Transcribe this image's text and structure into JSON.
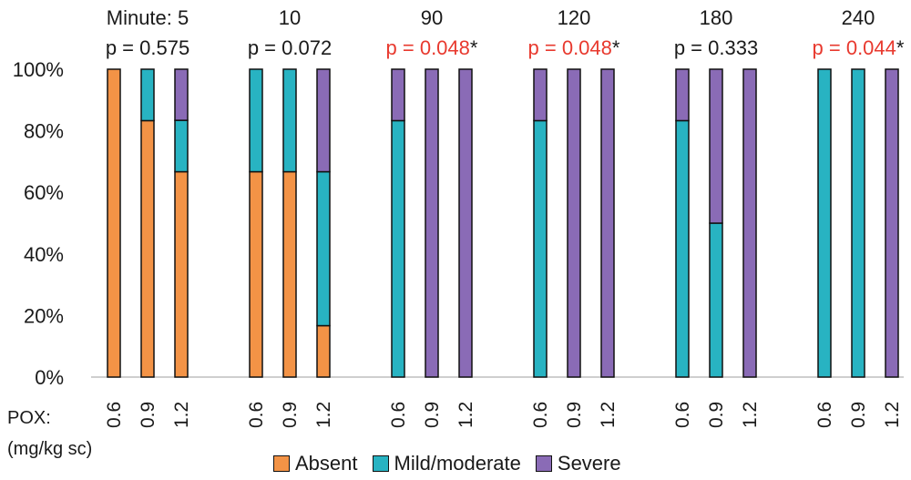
{
  "chart_data": {
    "type": "bar",
    "stacked": true,
    "title": "",
    "ylabel": "",
    "ylim": [
      0,
      100
    ],
    "y_ticks": [
      "0%",
      "20%",
      "40%",
      "60%",
      "80%",
      "100%"
    ],
    "x_axis_label_line1": "POX:",
    "x_axis_label_line2": "(mg/kg sc)",
    "colors": {
      "Absent": "#f39346",
      "Mild/moderate": "#28b3c2",
      "Severe": "#8a6bb6"
    },
    "groups": [
      {
        "minute_label": "Minute: 5",
        "p_text": "p = 0.575",
        "p_significant": false,
        "p_star": "",
        "bars": [
          {
            "dose": "0.6",
            "Absent": 100,
            "Mild/moderate": 0,
            "Severe": 0
          },
          {
            "dose": "0.9",
            "Absent": 83.3,
            "Mild/moderate": 16.7,
            "Severe": 0
          },
          {
            "dose": "1.2",
            "Absent": 66.7,
            "Mild/moderate": 16.7,
            "Severe": 16.6
          }
        ]
      },
      {
        "minute_label": "10",
        "p_text": "p = 0.072",
        "p_significant": false,
        "p_star": "",
        "bars": [
          {
            "dose": "0.6",
            "Absent": 66.7,
            "Mild/moderate": 33.3,
            "Severe": 0
          },
          {
            "dose": "0.9",
            "Absent": 66.7,
            "Mild/moderate": 33.3,
            "Severe": 0
          },
          {
            "dose": "1.2",
            "Absent": 16.7,
            "Mild/moderate": 50,
            "Severe": 33.3
          }
        ]
      },
      {
        "minute_label": "90",
        "p_text": "p = 0.048",
        "p_significant": true,
        "p_star": "*",
        "bars": [
          {
            "dose": "0.6",
            "Absent": 0,
            "Mild/moderate": 83.3,
            "Severe": 16.7
          },
          {
            "dose": "0.9",
            "Absent": 0,
            "Mild/moderate": 0,
            "Severe": 100
          },
          {
            "dose": "1.2",
            "Absent": 0,
            "Mild/moderate": 0,
            "Severe": 100
          }
        ]
      },
      {
        "minute_label": "120",
        "p_text": "p = 0.048",
        "p_significant": true,
        "p_star": "*",
        "bars": [
          {
            "dose": "0.6",
            "Absent": 0,
            "Mild/moderate": 83.3,
            "Severe": 16.7
          },
          {
            "dose": "0.9",
            "Absent": 0,
            "Mild/moderate": 0,
            "Severe": 100
          },
          {
            "dose": "1.2",
            "Absent": 0,
            "Mild/moderate": 0,
            "Severe": 100
          }
        ]
      },
      {
        "minute_label": "180",
        "p_text": "p = 0.333",
        "p_significant": false,
        "p_star": "",
        "bars": [
          {
            "dose": "0.6",
            "Absent": 0,
            "Mild/moderate": 83.3,
            "Severe": 16.7
          },
          {
            "dose": "0.9",
            "Absent": 0,
            "Mild/moderate": 50,
            "Severe": 50
          },
          {
            "dose": "1.2",
            "Absent": 0,
            "Mild/moderate": 0,
            "Severe": 100
          }
        ]
      },
      {
        "minute_label": "240",
        "p_text": "p = 0.044",
        "p_significant": true,
        "p_star": "*",
        "bars": [
          {
            "dose": "0.6",
            "Absent": 0,
            "Mild/moderate": 100,
            "Severe": 0
          },
          {
            "dose": "0.9",
            "Absent": 0,
            "Mild/moderate": 100,
            "Severe": 0
          },
          {
            "dose": "1.2",
            "Absent": 0,
            "Mild/moderate": 0,
            "Severe": 100
          }
        ]
      }
    ],
    "series": [
      {
        "name": "Absent"
      },
      {
        "name": "Mild/moderate"
      },
      {
        "name": "Severe"
      }
    ],
    "legend_position": "bottom",
    "grid": false
  }
}
